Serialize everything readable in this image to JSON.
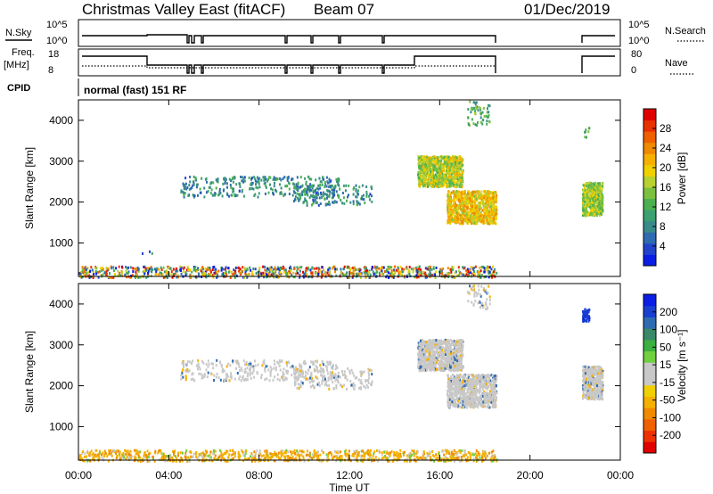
{
  "header": {
    "station": "Christmas Valley East (fitACF)",
    "beam": "Beam 07",
    "date": "01/Dec/2019"
  },
  "params": {
    "nsky_label": "N.Sky",
    "nsearch_label": "N.Search",
    "freq_label_1": "Freq.",
    "freq_label_2": "[MHz]",
    "nave_label": "Nave",
    "cpid_label": "CPID",
    "cpid_value": "normal (fast) 151 RF",
    "noise_ticks": [
      "10^5",
      "10^0"
    ],
    "freq_ticks": [
      "18",
      "8"
    ],
    "nave_ticks": [
      "80",
      "0"
    ]
  },
  "chart_data": [
    {
      "type": "heatmap",
      "name": "Power",
      "ylabel": "Slant Range [km]",
      "xlabel": "Time UT",
      "ylim": [
        180,
        4500
      ],
      "xlim": [
        0,
        24
      ],
      "y_ticks": [
        1000,
        2000,
        3000,
        4000
      ],
      "x_ticks": [
        "00:00",
        "04:00",
        "08:00",
        "12:00",
        "16:00",
        "20:00",
        "00:00"
      ],
      "colorbar": {
        "label": "Power [dB]",
        "range": [
          0,
          32
        ],
        "ticks": [
          "28",
          "24",
          "20",
          "16",
          "12",
          "8",
          "4"
        ],
        "tick_values": [
          28,
          24,
          20,
          16,
          12,
          8,
          4
        ],
        "colors": [
          "#0a1ee6",
          "#2244cc",
          "#2f6bb0",
          "#3a8a8a",
          "#3ca070",
          "#4cb050",
          "#7cc040",
          "#b8d030",
          "#f0d000",
          "#f5b000",
          "#f08a00",
          "#ee6000",
          "#e83000",
          "#e00000"
        ]
      },
      "regions": [
        {
          "t": [
            0.0,
            18.5
          ],
          "r": [
            180,
            450
          ],
          "level": "mixed",
          "density": "dense"
        },
        {
          "t": [
            4.5,
            11.5
          ],
          "r": [
            2150,
            2650
          ],
          "level": 7,
          "density": "sparse"
        },
        {
          "t": [
            9.5,
            13.0
          ],
          "r": [
            1950,
            2450
          ],
          "level": 7,
          "density": "sparse"
        },
        {
          "t": [
            15.0,
            17.0
          ],
          "r": [
            2400,
            3150
          ],
          "level": 15,
          "density": "dense"
        },
        {
          "t": [
            16.3,
            18.5
          ],
          "r": [
            1500,
            2300
          ],
          "level": 18,
          "density": "dense"
        },
        {
          "t": [
            17.2,
            18.2
          ],
          "r": [
            3900,
            4500
          ],
          "level": 10,
          "density": "sparse"
        },
        {
          "t": [
            22.3,
            23.2
          ],
          "r": [
            1700,
            2500
          ],
          "level": 14,
          "density": "dense"
        },
        {
          "t": [
            22.3,
            22.6
          ],
          "r": [
            3600,
            3900
          ],
          "level": 12,
          "density": "sparse"
        },
        {
          "t": [
            2.8,
            3.4
          ],
          "r": [
            760,
            820
          ],
          "level": 6,
          "density": "sparse"
        }
      ]
    },
    {
      "type": "heatmap",
      "name": "Velocity",
      "ylabel": "Slant Range [km]",
      "xlabel": "Time UT",
      "ylim": [
        180,
        4500
      ],
      "xlim": [
        0,
        24
      ],
      "y_ticks": [
        1000,
        2000,
        3000,
        4000
      ],
      "x_ticks": [
        "00:00",
        "04:00",
        "08:00",
        "12:00",
        "16:00",
        "20:00",
        "00:00"
      ],
      "colorbar": {
        "label": "Velocity [m s⁻¹]",
        "range": [
          -250,
          250
        ],
        "ticks": [
          "200",
          "100",
          "50",
          "15",
          "-15",
          "-50",
          "-100",
          "-200"
        ],
        "colors": [
          "#e00000",
          "#ee3000",
          "#f06000",
          "#f08a00",
          "#f5b000",
          "#f0d000",
          "#c8c8c8",
          "#c8c8c8",
          "#70d040",
          "#3cb040",
          "#3a8a6a",
          "#2f6bb0",
          "#1a3fd0",
          "#0a1ee6"
        ]
      },
      "regions": [
        {
          "t": [
            0.0,
            18.5
          ],
          "r": [
            180,
            450
          ],
          "level": "orange-mix",
          "density": "dense"
        },
        {
          "t": [
            4.5,
            11.5
          ],
          "r": [
            2150,
            2650
          ],
          "level": "grey",
          "density": "sparse"
        },
        {
          "t": [
            9.5,
            13.0
          ],
          "r": [
            1950,
            2450
          ],
          "level": "grey",
          "density": "sparse"
        },
        {
          "t": [
            15.0,
            17.0
          ],
          "r": [
            2400,
            3150
          ],
          "level": "grey",
          "density": "dense"
        },
        {
          "t": [
            16.3,
            18.5
          ],
          "r": [
            1500,
            2300
          ],
          "level": "grey",
          "density": "dense"
        },
        {
          "t": [
            17.2,
            18.2
          ],
          "r": [
            3900,
            4500
          ],
          "level": "grey",
          "density": "sparse"
        },
        {
          "t": [
            22.3,
            23.2
          ],
          "r": [
            1700,
            2500
          ],
          "level": "grey",
          "density": "dense"
        },
        {
          "t": [
            22.3,
            22.6
          ],
          "r": [
            3600,
            3900
          ],
          "level": "blue",
          "density": "dense"
        }
      ]
    }
  ]
}
